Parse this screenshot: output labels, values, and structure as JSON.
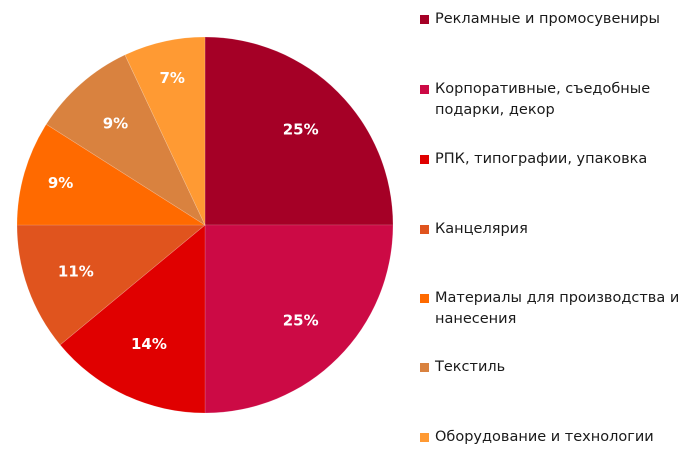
{
  "chart_data": {
    "type": "pie",
    "title": "",
    "categories": [
      "Рекламные и промосувениры",
      "Корпоративные, съедобные подарки, декор",
      "РПК, типографии, упаковка",
      "Канцелярия",
      "Материалы для производства и нанесения",
      "Текстиль",
      "Оборудование и технологии"
    ],
    "values": [
      25,
      25,
      14,
      11,
      9,
      9,
      7
    ],
    "labels": [
      "25%",
      "25%",
      "14%",
      "11%",
      "9%",
      "9%",
      "7%"
    ],
    "colors": [
      "#a50026",
      "#cc0a45",
      "#e00000",
      "#e0541e",
      "#ff6a00",
      "#d9823f",
      "#ff9a33"
    ],
    "legend_position": "right",
    "start_angle": "12 o'clock, clockwise"
  },
  "legend": {
    "items": [
      {
        "label": "Рекламные и промосувениры",
        "color": "#a50026"
      },
      {
        "label": "Корпоративные, съедобные подарки, декор",
        "color": "#cc0a45"
      },
      {
        "label": "РПК, типографии, упаковка",
        "color": "#e00000"
      },
      {
        "label": "Канцелярия",
        "color": "#e0541e"
      },
      {
        "label": "Материалы для производства и нанесения",
        "color": "#ff6a00"
      },
      {
        "label": "Текстиль",
        "color": "#d9823f"
      },
      {
        "label": "Оборудование и технологии",
        "color": "#ff9a33"
      }
    ]
  }
}
